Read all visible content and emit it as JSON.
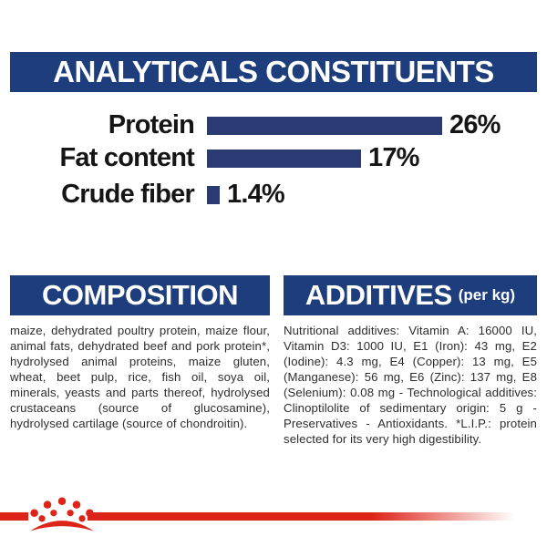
{
  "brand_colors": {
    "navy_band": "#1e3d7c",
    "bar_navy": "#2a3a73",
    "red": "#dd2418",
    "text_black": "#151515",
    "body_text": "#2d2d2d"
  },
  "header": {
    "title": "ANALYTICALS CONSTITUENTS"
  },
  "chart_data": {
    "type": "bar",
    "orientation": "horizontal",
    "title": "ANALYTICALS CONSTITUENTS",
    "categories": [
      "Protein",
      "Fat content",
      "Crude fiber"
    ],
    "values": [
      26,
      17,
      1.4
    ],
    "value_labels": [
      "26%",
      "17%",
      "1.4%"
    ],
    "unit": "%",
    "xlim": [
      0,
      26
    ],
    "grid": false,
    "legend": "none"
  },
  "composition": {
    "title": "COMPOSITION",
    "body": "maize, dehydrated poultry protein, maize flour, animal fats, dehydrated beef and pork protein*, hydrolysed animal proteins, maize gluten, wheat, beet pulp, rice, fish oil, soya oil, minerals, yeasts and parts thereof, hydrolysed crustaceans (source of glucosamine), hydrolysed cartilage (source of chondroitin)."
  },
  "additives": {
    "title": "ADDITIVES",
    "title_suffix": "(per kg)",
    "body": "Nutritional additives: Vitamin A: 16000 IU, Vitamin D3: 1000 IU, E1 (Iron): 43 mg, E2 (Iodine): 4.3 mg, E4 (Copper): 13 mg, E5 (Manganese): 56 mg, E6 (Zinc): 137 mg, E8 (Selenium): 0.08 mg - Technological additives: Clinoptilolite of sedimentary origin: 5 g - Preservatives - Antioxidants. *L.I.P.: protein selected for its very high digestibility."
  },
  "footer": {
    "logo": "royal-canin-crown-icon"
  }
}
